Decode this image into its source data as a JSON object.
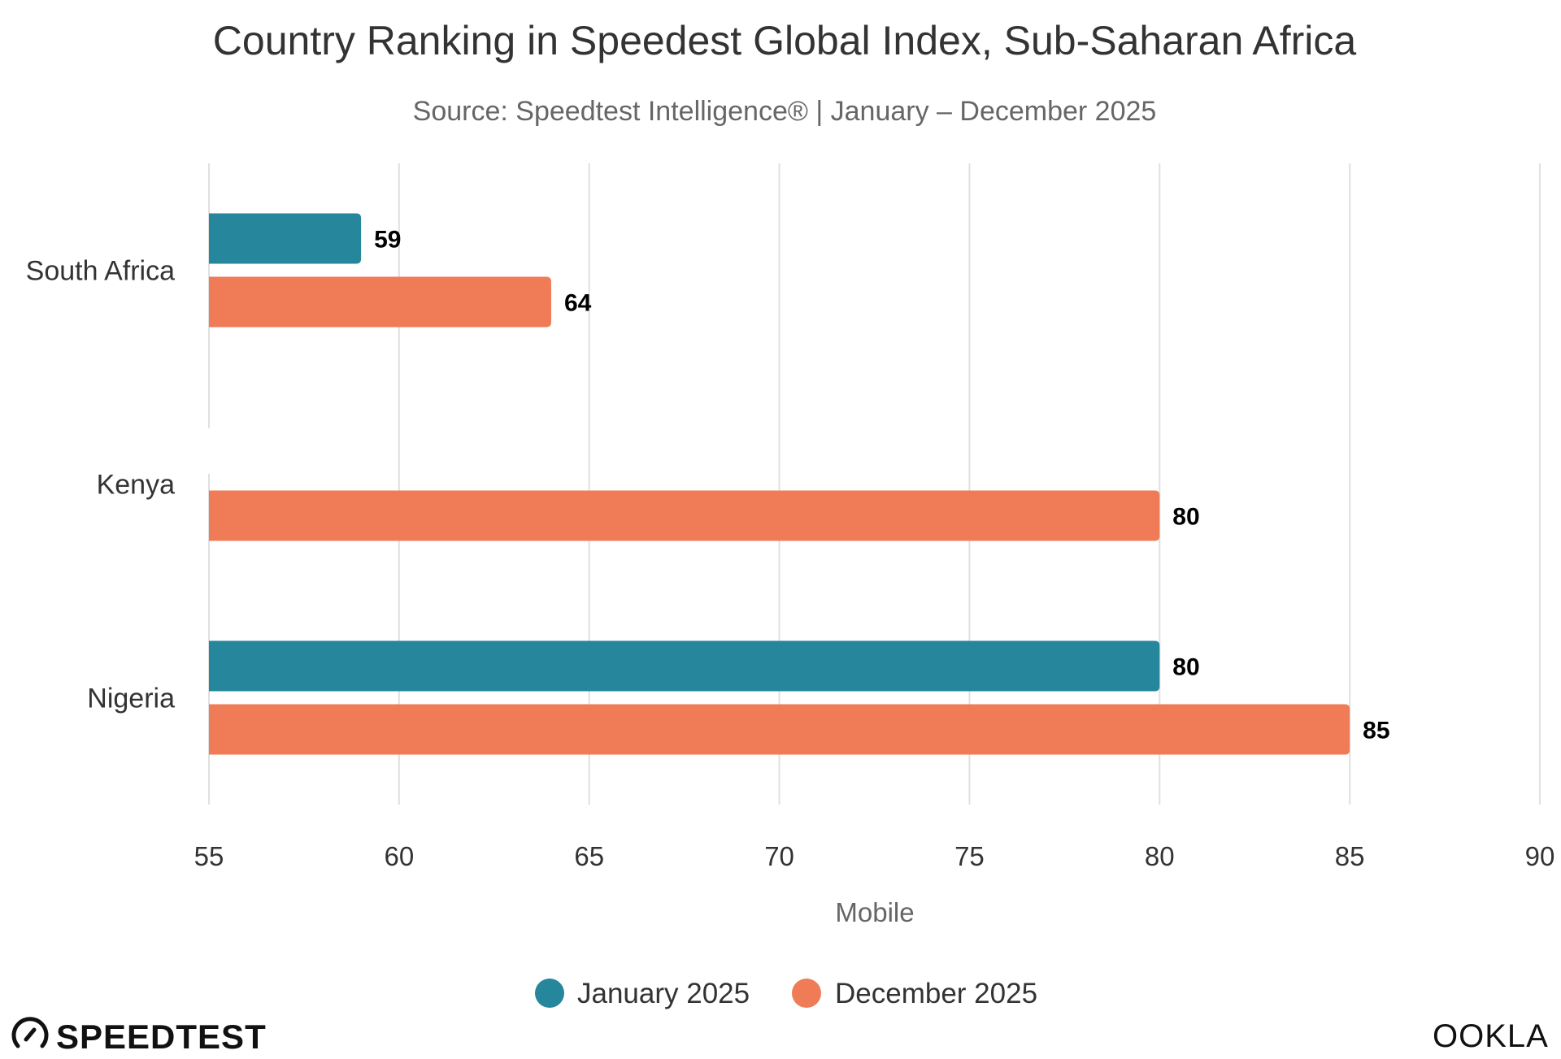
{
  "chart_data": {
    "type": "bar",
    "orientation": "horizontal",
    "title": "Country Ranking in Speedest Global Index, Sub-Saharan Africa",
    "subtitle": "Source: Speedtest Intelligence® | January – December 2025",
    "xlabel": "Mobile",
    "ylabel": "",
    "xlim": [
      55,
      90
    ],
    "xticks": [
      55,
      60,
      65,
      70,
      75,
      80,
      85,
      90
    ],
    "grid": true,
    "legend_position": "bottom",
    "categories": [
      "South Africa",
      "Kenya",
      "Nigeria"
    ],
    "series": [
      {
        "name": "January 2025",
        "color": "#26869C",
        "values": [
          59,
          null,
          80
        ]
      },
      {
        "name": "December 2025",
        "color": "#EF7B57",
        "values": [
          64,
          80,
          85
        ]
      }
    ]
  },
  "branding": {
    "left_logo": "SPEEDTEST",
    "left_icon": "speedometer-gauge-icon",
    "right_logo": "OOKLA"
  }
}
